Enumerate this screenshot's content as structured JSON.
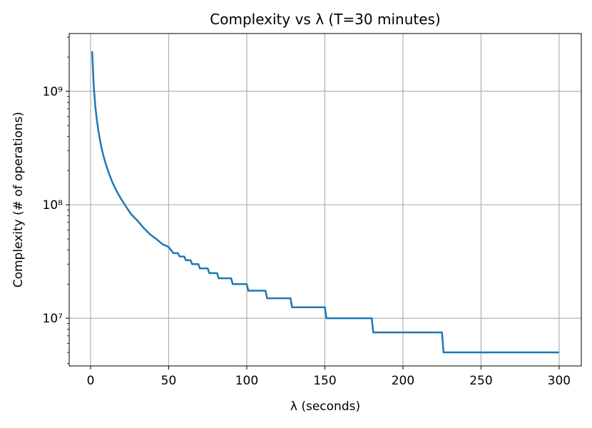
{
  "chart_data": {
    "type": "line",
    "title": "Complexity vs λ (T=30 minutes)",
    "xlabel": "λ (seconds)",
    "ylabel": "Complexity (# of operations)",
    "x": [
      1,
      2,
      3,
      4,
      5,
      6,
      7,
      8,
      9,
      10,
      12,
      14,
      16,
      18,
      20,
      23,
      26,
      30,
      34,
      38,
      42,
      46,
      50,
      53,
      56,
      57,
      60,
      61,
      64,
      65,
      69,
      70,
      75,
      76,
      81,
      82,
      90,
      91,
      100,
      101,
      112,
      113,
      128,
      129,
      150,
      151,
      180,
      181,
      225,
      226,
      300
    ],
    "series": [
      {
        "name": "Complexity",
        "color": "#1f77b4",
        "values": [
          2247500000,
          1122500000,
          747500000,
          560000000,
          447500000,
          372500000,
          317500000,
          277500000,
          247500000,
          222500000,
          185000000,
          157500000,
          137500000,
          122500000,
          110000000,
          95000000,
          82500000,
          72500000,
          62500000,
          55000000,
          50000000,
          45000000,
          42500000,
          37500000,
          37500000,
          35000000,
          35000000,
          32500000,
          32500000,
          30000000,
          30000000,
          27500000,
          27500000,
          25000000,
          25000000,
          22500000,
          22500000,
          20000000,
          20000000,
          17500000,
          17500000,
          15000000,
          15000000,
          12500000,
          12500000,
          10000000,
          10000000,
          7500000,
          7500000,
          5000000,
          5000000
        ]
      }
    ],
    "xlim": [
      -13.7,
      314.2
    ],
    "xticks": [
      0,
      50,
      100,
      150,
      200,
      250,
      300
    ],
    "ylim": [
      3800000,
      3230000000
    ],
    "yticks": [
      {
        "value": 10000000,
        "label": "10⁷"
      },
      {
        "value": 100000000,
        "label": "10⁸"
      },
      {
        "value": 1000000000,
        "label": "10⁹"
      }
    ],
    "yminorticks": [
      4000000,
      5000000,
      6000000,
      7000000,
      8000000,
      9000000,
      20000000,
      30000000,
      40000000,
      50000000,
      60000000,
      70000000,
      80000000,
      90000000,
      200000000,
      300000000,
      400000000,
      500000000,
      600000000,
      700000000,
      800000000,
      900000000,
      2000000000,
      3000000000
    ],
    "log_y": true,
    "grid": true
  }
}
